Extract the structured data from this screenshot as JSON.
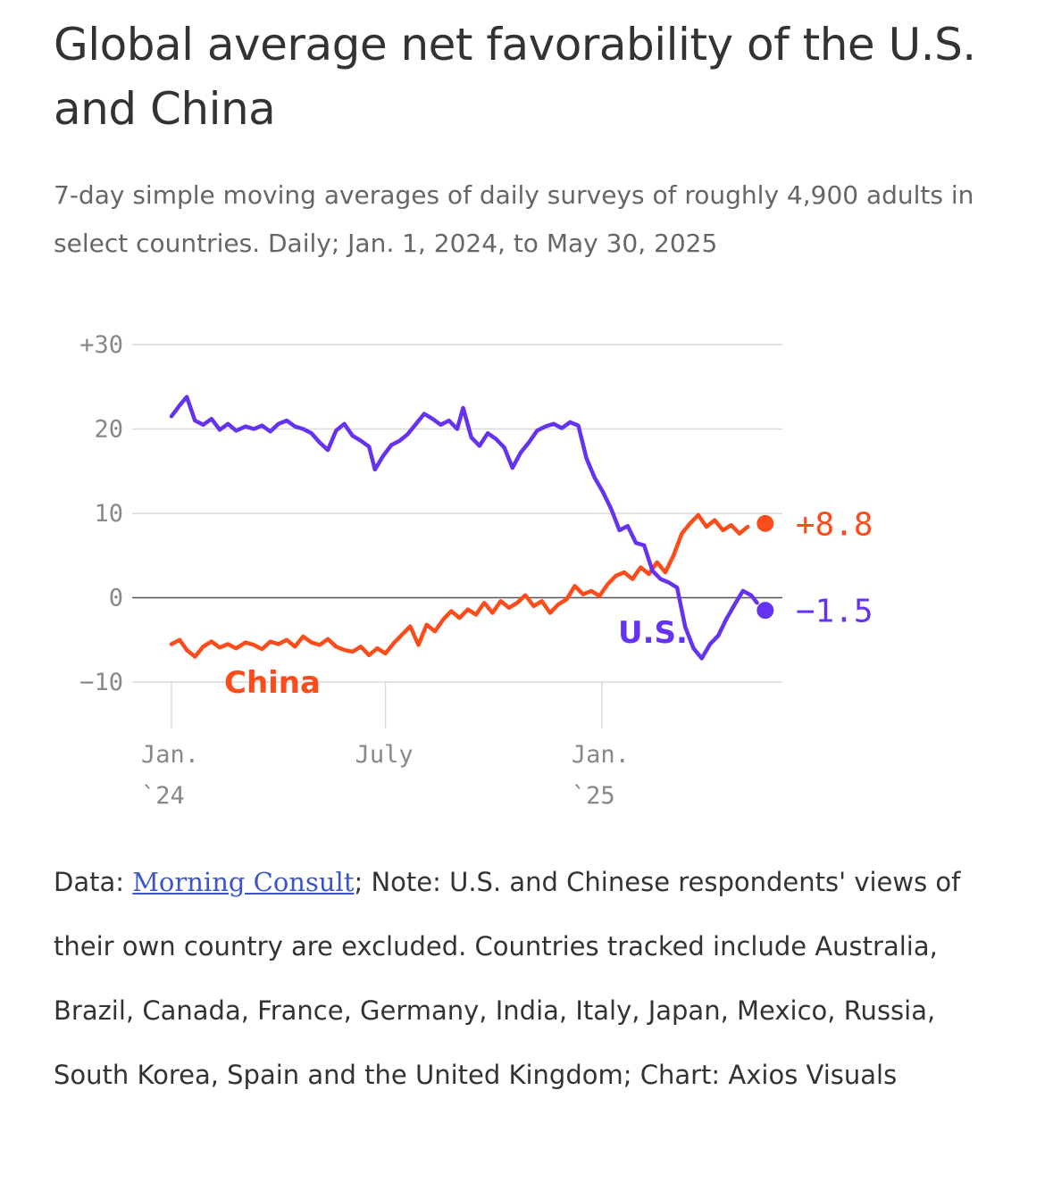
{
  "title": "Global average net favorability of the U.S. and China",
  "subtitle": "7-day simple moving averages of daily surveys of roughly 4,900 adults in select countries. Daily; Jan. 1, 2024, to May 30, 2025",
  "footer": {
    "data_prefix": "Data: ",
    "source_link": "Morning Consult",
    "rest": "; Note: U.S. and Chinese respondents' views of their own country are excluded. Countries tracked include Australia, Brazil, Canada, France, Germany, India, Italy, Japan, Mexico, Russia, South Korea, Spain and the United Kingdom; Chart: Axios Visuals"
  },
  "colors": {
    "us": "#6533f0",
    "china": "#fb4d1c",
    "grid": "#d9d9d9",
    "zero": "#555555",
    "text": "#333333",
    "muted": "#888888",
    "link": "#3b56c8"
  },
  "chart_data": {
    "type": "line",
    "y_ticks": [
      {
        "value": 30,
        "label": "+30"
      },
      {
        "value": 20,
        "label": "20"
      },
      {
        "value": 10,
        "label": "10"
      },
      {
        "value": 0,
        "label": "0"
      },
      {
        "value": -10,
        "label": "−10"
      }
    ],
    "x_ticks": [
      {
        "date": "2024-01-01",
        "line1": "Jan.",
        "line2": "`24"
      },
      {
        "date": "2024-07-01",
        "line1": "July",
        "line2": ""
      },
      {
        "date": "2025-01-01",
        "line1": "Jan.",
        "line2": "`25"
      }
    ],
    "x_range": [
      "2024-01-01",
      "2025-05-30"
    ],
    "ylim": [
      -10,
      30
    ],
    "series": [
      {
        "name": "U.S.",
        "key": "us",
        "end_label": "−1.5",
        "points": [
          [
            "2024-01-01",
            21.5
          ],
          [
            "2024-01-08",
            22.8
          ],
          [
            "2024-01-14",
            23.8
          ],
          [
            "2024-01-21",
            21.0
          ],
          [
            "2024-01-28",
            20.5
          ],
          [
            "2024-02-04",
            21.2
          ],
          [
            "2024-02-11",
            19.9
          ],
          [
            "2024-02-18",
            20.6
          ],
          [
            "2024-02-25",
            19.8
          ],
          [
            "2024-03-04",
            20.3
          ],
          [
            "2024-03-11",
            20.0
          ],
          [
            "2024-03-18",
            20.4
          ],
          [
            "2024-03-25",
            19.7
          ],
          [
            "2024-04-01",
            20.6
          ],
          [
            "2024-04-08",
            21.0
          ],
          [
            "2024-04-15",
            20.3
          ],
          [
            "2024-04-22",
            20.0
          ],
          [
            "2024-04-29",
            19.5
          ],
          [
            "2024-05-06",
            18.4
          ],
          [
            "2024-05-13",
            17.5
          ],
          [
            "2024-05-20",
            19.8
          ],
          [
            "2024-05-27",
            20.6
          ],
          [
            "2024-06-03",
            19.2
          ],
          [
            "2024-06-10",
            18.6
          ],
          [
            "2024-06-17",
            17.9
          ],
          [
            "2024-06-22",
            15.2
          ],
          [
            "2024-06-29",
            16.8
          ],
          [
            "2024-07-06",
            18.1
          ],
          [
            "2024-07-13",
            18.6
          ],
          [
            "2024-07-20",
            19.4
          ],
          [
            "2024-07-27",
            20.6
          ],
          [
            "2024-08-03",
            21.8
          ],
          [
            "2024-08-10",
            21.2
          ],
          [
            "2024-08-17",
            20.5
          ],
          [
            "2024-08-24",
            21.0
          ],
          [
            "2024-08-31",
            20.0
          ],
          [
            "2024-09-05",
            22.5
          ],
          [
            "2024-09-12",
            19.0
          ],
          [
            "2024-09-19",
            18.0
          ],
          [
            "2024-09-26",
            19.5
          ],
          [
            "2024-10-03",
            18.8
          ],
          [
            "2024-10-10",
            17.8
          ],
          [
            "2024-10-17",
            15.4
          ],
          [
            "2024-10-24",
            17.2
          ],
          [
            "2024-10-31",
            18.4
          ],
          [
            "2024-11-07",
            19.8
          ],
          [
            "2024-11-14",
            20.3
          ],
          [
            "2024-11-21",
            20.6
          ],
          [
            "2024-11-28",
            20.1
          ],
          [
            "2024-12-05",
            20.8
          ],
          [
            "2024-12-12",
            20.4
          ],
          [
            "2024-12-19",
            16.5
          ],
          [
            "2024-12-26",
            14.2
          ],
          [
            "2025-01-02",
            12.5
          ],
          [
            "2025-01-09",
            10.5
          ],
          [
            "2025-01-16",
            8.0
          ],
          [
            "2025-01-23",
            8.5
          ],
          [
            "2025-01-30",
            6.5
          ],
          [
            "2025-02-06",
            6.2
          ],
          [
            "2025-02-13",
            3.2
          ],
          [
            "2025-02-20",
            2.2
          ],
          [
            "2025-02-27",
            1.8
          ],
          [
            "2025-03-06",
            1.2
          ],
          [
            "2025-03-13",
            -3.5
          ],
          [
            "2025-03-20",
            -6.0
          ],
          [
            "2025-03-27",
            -7.2
          ],
          [
            "2025-04-03",
            -5.5
          ],
          [
            "2025-04-10",
            -4.5
          ],
          [
            "2025-04-17",
            -2.5
          ],
          [
            "2025-04-24",
            -0.8
          ],
          [
            "2025-05-01",
            0.8
          ],
          [
            "2025-05-08",
            0.3
          ],
          [
            "2025-05-13",
            -0.6
          ]
        ],
        "end_point": [
          "2025-05-20",
          -1.5
        ]
      },
      {
        "name": "China",
        "key": "china",
        "end_label": "+8.8",
        "points": [
          [
            "2024-01-01",
            -5.5
          ],
          [
            "2024-01-08",
            -5.0
          ],
          [
            "2024-01-14",
            -6.2
          ],
          [
            "2024-01-21",
            -7.0
          ],
          [
            "2024-01-28",
            -5.8
          ],
          [
            "2024-02-04",
            -5.2
          ],
          [
            "2024-02-11",
            -5.9
          ],
          [
            "2024-02-18",
            -5.5
          ],
          [
            "2024-02-25",
            -6.0
          ],
          [
            "2024-03-04",
            -5.3
          ],
          [
            "2024-03-11",
            -5.6
          ],
          [
            "2024-03-18",
            -6.1
          ],
          [
            "2024-03-25",
            -5.2
          ],
          [
            "2024-04-01",
            -5.5
          ],
          [
            "2024-04-08",
            -5.0
          ],
          [
            "2024-04-15",
            -5.8
          ],
          [
            "2024-04-22",
            -4.6
          ],
          [
            "2024-04-29",
            -5.3
          ],
          [
            "2024-05-06",
            -5.6
          ],
          [
            "2024-05-13",
            -4.9
          ],
          [
            "2024-05-20",
            -5.8
          ],
          [
            "2024-05-27",
            -6.2
          ],
          [
            "2024-06-03",
            -6.4
          ],
          [
            "2024-06-10",
            -5.8
          ],
          [
            "2024-06-17",
            -6.8
          ],
          [
            "2024-06-24",
            -6.0
          ],
          [
            "2024-07-01",
            -6.6
          ],
          [
            "2024-07-08",
            -5.4
          ],
          [
            "2024-07-15",
            -4.4
          ],
          [
            "2024-07-22",
            -3.4
          ],
          [
            "2024-07-29",
            -5.6
          ],
          [
            "2024-08-05",
            -3.2
          ],
          [
            "2024-08-12",
            -4.0
          ],
          [
            "2024-08-19",
            -2.6
          ],
          [
            "2024-08-26",
            -1.6
          ],
          [
            "2024-09-02",
            -2.4
          ],
          [
            "2024-09-09",
            -1.4
          ],
          [
            "2024-09-16",
            -2.0
          ],
          [
            "2024-09-23",
            -0.6
          ],
          [
            "2024-09-30",
            -1.8
          ],
          [
            "2024-10-07",
            -0.4
          ],
          [
            "2024-10-14",
            -1.2
          ],
          [
            "2024-10-21",
            -0.6
          ],
          [
            "2024-10-28",
            0.3
          ],
          [
            "2024-11-04",
            -1.0
          ],
          [
            "2024-11-11",
            -0.4
          ],
          [
            "2024-11-18",
            -1.8
          ],
          [
            "2024-11-25",
            -0.8
          ],
          [
            "2024-12-02",
            -0.2
          ],
          [
            "2024-12-09",
            1.4
          ],
          [
            "2024-12-16",
            0.4
          ],
          [
            "2024-12-23",
            0.8
          ],
          [
            "2024-12-30",
            0.2
          ],
          [
            "2025-01-06",
            1.6
          ],
          [
            "2025-01-13",
            2.6
          ],
          [
            "2025-01-20",
            3.0
          ],
          [
            "2025-01-27",
            2.2
          ],
          [
            "2025-02-03",
            3.6
          ],
          [
            "2025-02-10",
            2.8
          ],
          [
            "2025-02-17",
            4.2
          ],
          [
            "2025-02-24",
            3.0
          ],
          [
            "2025-03-03",
            5.0
          ],
          [
            "2025-03-10",
            7.6
          ],
          [
            "2025-03-17",
            8.8
          ],
          [
            "2025-03-24",
            9.8
          ],
          [
            "2025-03-31",
            8.4
          ],
          [
            "2025-04-07",
            9.2
          ],
          [
            "2025-04-14",
            8.0
          ],
          [
            "2025-04-21",
            8.6
          ],
          [
            "2025-04-28",
            7.6
          ],
          [
            "2025-05-05",
            8.4
          ]
        ],
        "end_point": [
          "2025-05-20",
          8.8
        ]
      }
    ]
  }
}
